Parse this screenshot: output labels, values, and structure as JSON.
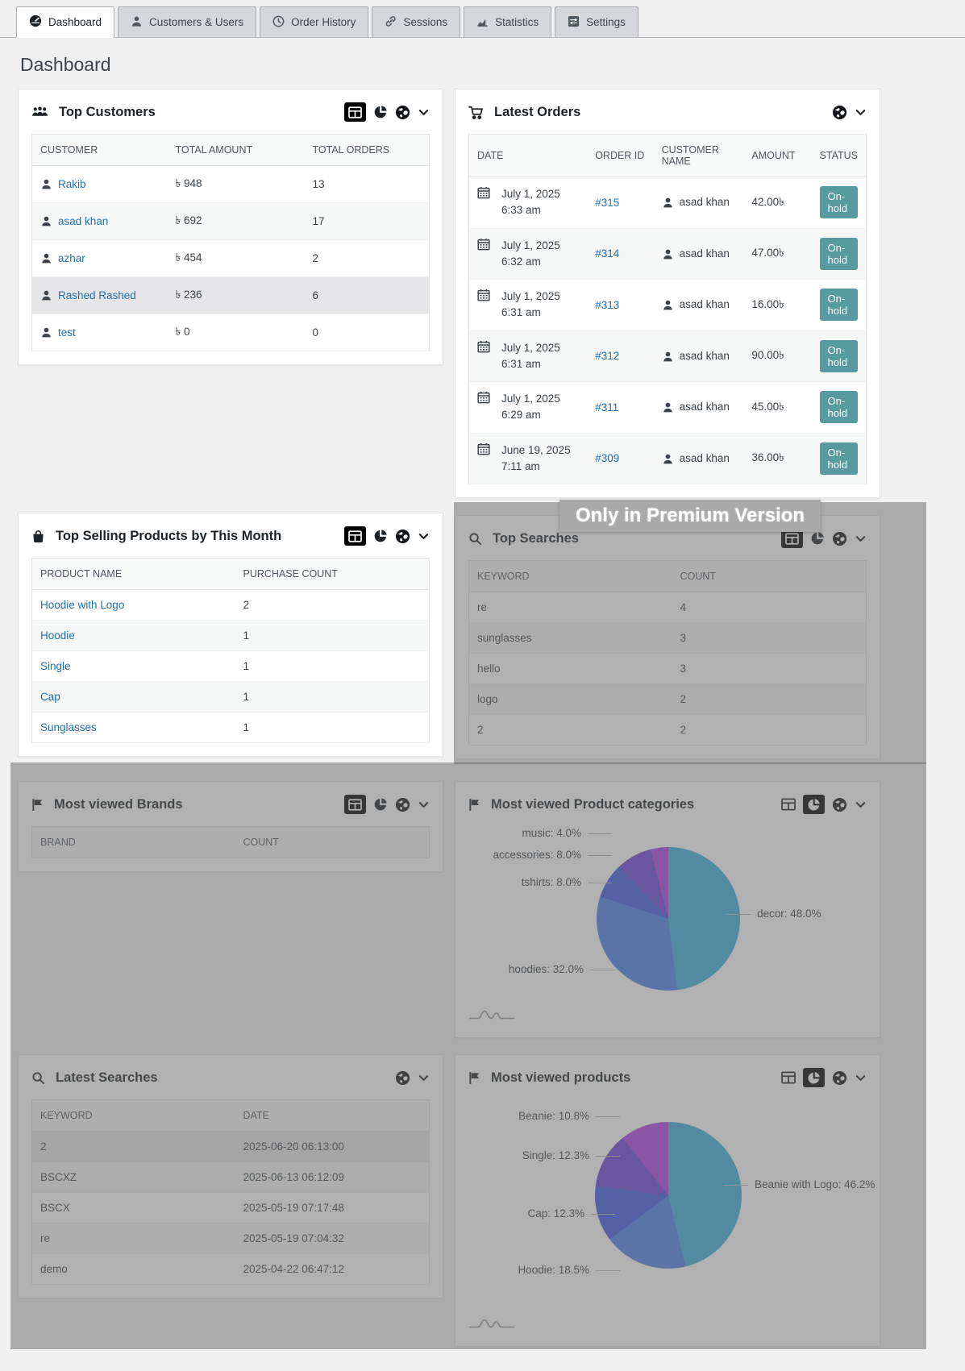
{
  "tabs": [
    {
      "label": "Dashboard",
      "active": true
    },
    {
      "label": "Customers & Users",
      "active": false
    },
    {
      "label": "Order History",
      "active": false
    },
    {
      "label": "Sessions",
      "active": false
    },
    {
      "label": "Statistics",
      "active": false
    },
    {
      "label": "Settings",
      "active": false
    }
  ],
  "page_title": "Dashboard",
  "premium_banner": "Only in Premium Version",
  "colors": {
    "link": "#2271b1",
    "status_on_hold": "#579ba1",
    "active_icon_bg": "#000000",
    "premium_overlay": "rgba(105,105,105,0.52)"
  },
  "panels": {
    "top_customers": {
      "title": "Top Customers",
      "columns": [
        {
          "label": "CUSTOMER",
          "type": "userlink",
          "key": "name"
        },
        {
          "label": "TOTAL AMOUNT",
          "type": "text",
          "key": "amount"
        },
        {
          "label": "TOTAL ORDERS",
          "type": "text",
          "key": "orders"
        }
      ],
      "rows": [
        {
          "name": "Rakib",
          "amount": "৳ 948",
          "orders": "13"
        },
        {
          "name": "asad khan",
          "amount": "৳ 692",
          "orders": "17"
        },
        {
          "name": "azhar",
          "amount": "৳ 454",
          "orders": "2"
        },
        {
          "name": "Rashed Rashed",
          "amount": "৳ 236",
          "orders": "6",
          "highlight": true
        },
        {
          "name": "test",
          "amount": "৳ 0",
          "orders": "0"
        }
      ]
    },
    "latest_orders": {
      "title": "Latest Orders",
      "columns": [
        {
          "label": "DATE",
          "type": "date",
          "key": "date"
        },
        {
          "label": "ORDER ID",
          "type": "link",
          "key": "order_id"
        },
        {
          "label": "CUSTOMER NAME",
          "type": "user",
          "key": "customer"
        },
        {
          "label": "AMOUNT",
          "type": "text",
          "key": "amount"
        },
        {
          "label": "STATUS",
          "type": "badge",
          "key": "status"
        }
      ],
      "rows": [
        {
          "date": "July 1, 2025 6:33 am",
          "order_id": "#315",
          "customer": "asad khan",
          "amount": "42.00৳",
          "status": "On-hold"
        },
        {
          "date": "July 1, 2025 6:32 am",
          "order_id": "#314",
          "customer": "asad khan",
          "amount": "47.00৳",
          "status": "On-hold"
        },
        {
          "date": "July 1, 2025 6:31 am",
          "order_id": "#313",
          "customer": "asad khan",
          "amount": "16.00৳",
          "status": "On-hold"
        },
        {
          "date": "July 1, 2025 6:31 am",
          "order_id": "#312",
          "customer": "asad khan",
          "amount": "90.00৳",
          "status": "On-hold"
        },
        {
          "date": "July 1, 2025 6:29 am",
          "order_id": "#311",
          "customer": "asad khan",
          "amount": "45.00৳",
          "status": "On-hold"
        },
        {
          "date": "June 19, 2025 7:11 am",
          "order_id": "#309",
          "customer": "asad khan",
          "amount": "36.00৳",
          "status": "On-hold"
        }
      ]
    },
    "top_selling": {
      "title": "Top Selling Products by This Month",
      "columns": [
        {
          "label": "PRODUCT NAME",
          "type": "link",
          "key": "name"
        },
        {
          "label": "PURCHASE COUNT",
          "type": "text",
          "key": "count"
        }
      ],
      "rows": [
        {
          "name": "Hoodie with Logo",
          "count": "2"
        },
        {
          "name": "Hoodie",
          "count": "1"
        },
        {
          "name": "Single",
          "count": "1"
        },
        {
          "name": "Cap",
          "count": "1"
        },
        {
          "name": "Sunglasses",
          "count": "1"
        }
      ]
    },
    "top_searches": {
      "title": "Top Searches",
      "columns": [
        {
          "label": "KEYWORD",
          "type": "text",
          "key": "keyword"
        },
        {
          "label": "COUNT",
          "type": "text",
          "key": "count"
        }
      ],
      "rows": [
        {
          "keyword": "re",
          "count": "4"
        },
        {
          "keyword": "sunglasses",
          "count": "3"
        },
        {
          "keyword": "hello",
          "count": "3"
        },
        {
          "keyword": "logo",
          "count": "2"
        },
        {
          "keyword": "2",
          "count": "2"
        }
      ]
    },
    "most_viewed_brands": {
      "title": "Most viewed Brands",
      "columns": [
        {
          "label": "BRAND",
          "type": "text",
          "key": "brand"
        },
        {
          "label": "COUNT",
          "type": "text",
          "key": "count"
        }
      ],
      "rows": []
    },
    "most_viewed_categories": {
      "title": "Most viewed Product categories"
    },
    "latest_searches": {
      "title": "Latest Searches",
      "columns": [
        {
          "label": "KEYWORD",
          "type": "text",
          "key": "keyword"
        },
        {
          "label": "DATE",
          "type": "text",
          "key": "date"
        }
      ],
      "rows": [
        {
          "keyword": "2",
          "date": "2025-06-20 06:13:00",
          "highlight": true
        },
        {
          "keyword": "BSCXZ",
          "date": "2025-06-13 06:12:09"
        },
        {
          "keyword": "BSCX",
          "date": "2025-05-19 07:17:48"
        },
        {
          "keyword": "re",
          "date": "2025-05-19 07:04:32"
        },
        {
          "keyword": "demo",
          "date": "2025-04-22 06:47:12"
        }
      ]
    },
    "most_viewed_products": {
      "title": "Most viewed products"
    }
  },
  "chart_data": [
    {
      "type": "pie",
      "title": "Most viewed Product categories",
      "labels": [
        "decor",
        "hoodies",
        "tshirts",
        "accessories",
        "music"
      ],
      "values": [
        48.0,
        32.0,
        8.0,
        8.0,
        4.0
      ],
      "label_texts": [
        "decor: 48.0%",
        "hoodies: 32.0%",
        "tshirts: 8.0%",
        "accessories: 8.0%",
        "music: 4.0%"
      ],
      "colors": [
        "#39b0db",
        "#4a80ec",
        "#3f58e6",
        "#6b3fdc",
        "#b03fe6"
      ],
      "legend": "callout-labels",
      "start_angle": "top-clockwise"
    },
    {
      "type": "pie",
      "title": "Most viewed products",
      "labels": [
        "Beanie with Logo",
        "Hoodie",
        "Cap",
        "Single",
        "Beanie"
      ],
      "values": [
        46.2,
        18.5,
        12.3,
        12.3,
        10.8
      ],
      "label_texts": [
        "Beanie with Logo: 46.2%",
        "Hoodie: 18.5%",
        "Cap: 12.3%",
        "Single: 12.3%",
        "Beanie: 10.8%"
      ],
      "colors": [
        "#39b0db",
        "#4a80ec",
        "#3f58e6",
        "#6b3fdc",
        "#b03fe6"
      ],
      "legend": "callout-labels",
      "start_angle": "top-clockwise"
    }
  ]
}
